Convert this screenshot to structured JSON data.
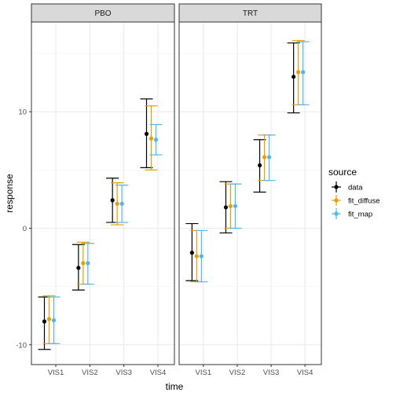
{
  "chart_data": {
    "type": "scatter",
    "xlabel": "time",
    "ylabel": "response",
    "ylim": [
      -11.7,
      17.7
    ],
    "yticks": [
      -10,
      0,
      10
    ],
    "categories": [
      "VIS1",
      "VIS2",
      "VIS3",
      "VIS4"
    ],
    "legend": {
      "title": "source",
      "placement": "right"
    },
    "grid": true,
    "colors": {
      "data": "#000000",
      "fit_diffuse": "#E69F00",
      "fit_map": "#56B4E9"
    },
    "panels": [
      {
        "label": "PBO",
        "series": [
          {
            "name": "data",
            "values": [
              -8.0,
              -3.4,
              2.4,
              8.1
            ],
            "lower": [
              -10.4,
              -5.3,
              0.5,
              5.2
            ],
            "upper": [
              -5.9,
              -1.4,
              4.3,
              11.1
            ]
          },
          {
            "name": "fit_diffuse",
            "values": [
              -7.8,
              -3.0,
              2.1,
              7.7
            ],
            "lower": [
              -9.9,
              -4.8,
              0.3,
              5.0
            ],
            "upper": [
              -5.8,
              -1.2,
              3.9,
              10.5
            ]
          },
          {
            "name": "fit_map",
            "values": [
              -7.9,
              -3.0,
              2.1,
              7.6
            ],
            "lower": [
              -9.9,
              -4.8,
              0.5,
              6.3
            ],
            "upper": [
              -5.9,
              -1.3,
              3.7,
              8.9
            ]
          }
        ]
      },
      {
        "label": "TRT",
        "series": [
          {
            "name": "data",
            "values": [
              -2.1,
              1.8,
              5.4,
              13.0
            ],
            "lower": [
              -4.5,
              -0.4,
              3.1,
              9.9
            ],
            "upper": [
              0.4,
              4.0,
              7.6,
              15.9
            ]
          },
          {
            "name": "fit_diffuse",
            "values": [
              -2.4,
              1.9,
              6.1,
              13.4
            ],
            "lower": [
              -4.6,
              0.0,
              4.1,
              10.6
            ],
            "upper": [
              -0.2,
              3.8,
              8.0,
              16.1
            ]
          },
          {
            "name": "fit_map",
            "values": [
              -2.4,
              1.9,
              6.1,
              13.4
            ],
            "lower": [
              -4.6,
              0.0,
              4.1,
              10.6
            ],
            "upper": [
              -0.2,
              3.8,
              8.0,
              16.0
            ]
          }
        ]
      }
    ]
  }
}
